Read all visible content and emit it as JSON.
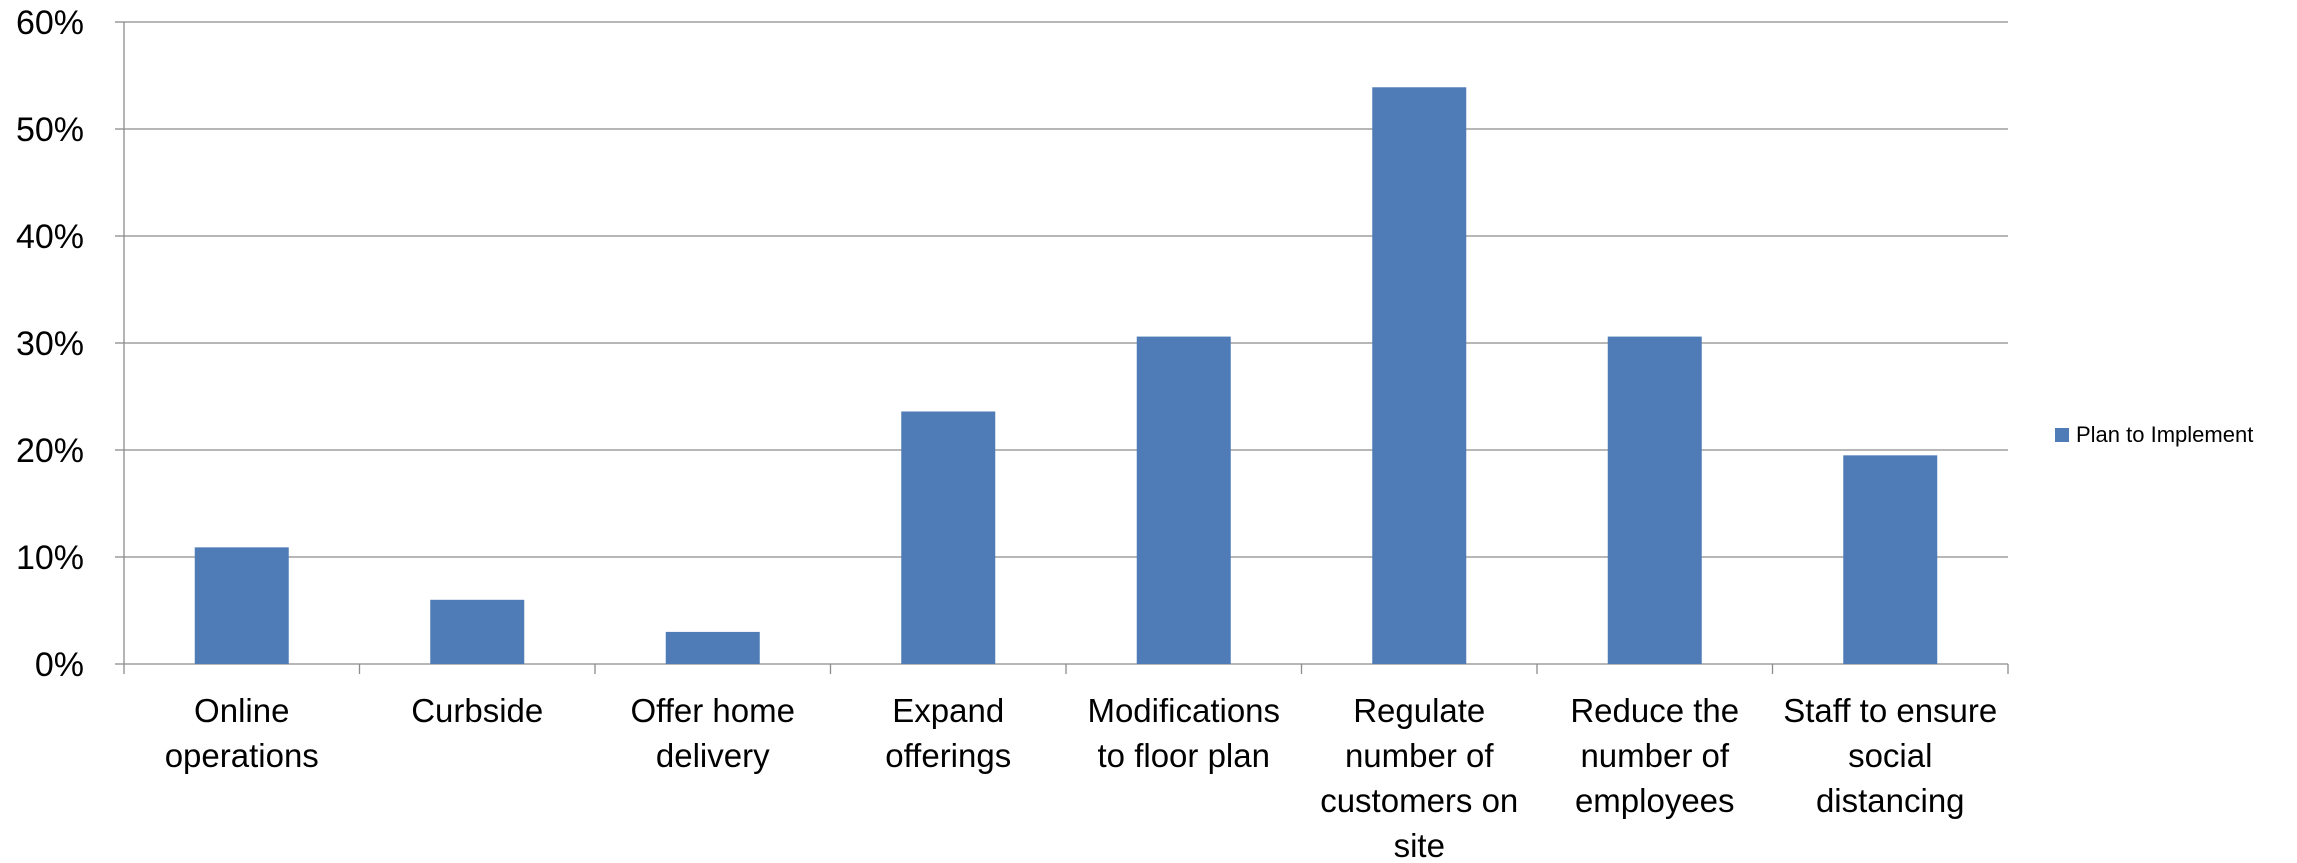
{
  "chart_data": {
    "type": "bar",
    "title": "",
    "xlabel": "",
    "ylabel": "",
    "categories": [
      "Online operations",
      "Curbside",
      "Offer home delivery",
      "Expand offerings",
      "Modifications to floor plan",
      "Regulate number of customers on site",
      "Reduce the number of employees",
      "Staff to ensure social distancing"
    ],
    "category_label_lines": [
      [
        "Online",
        "operations"
      ],
      [
        "Curbside"
      ],
      [
        "Offer home",
        "delivery"
      ],
      [
        "Expand",
        "offerings"
      ],
      [
        "Modifications",
        "to floor plan"
      ],
      [
        "Regulate",
        "number of",
        "customers on",
        "site"
      ],
      [
        "Reduce the",
        "number of",
        "employees"
      ],
      [
        "Staff to ensure",
        "social",
        "distancing"
      ]
    ],
    "series": [
      {
        "name": "Plan to Implement",
        "values": [
          10.9,
          6.0,
          3.0,
          23.6,
          30.6,
          53.9,
          30.6,
          19.5
        ],
        "color": "#4f7cb6"
      }
    ],
    "ylim": [
      0,
      60
    ],
    "yticks": [
      0,
      10,
      20,
      30,
      40,
      50,
      60
    ],
    "ytick_labels": [
      "0%",
      "10%",
      "20%",
      "30%",
      "40%",
      "50%",
      "60%"
    ],
    "grid": true,
    "legend_position": "right"
  }
}
